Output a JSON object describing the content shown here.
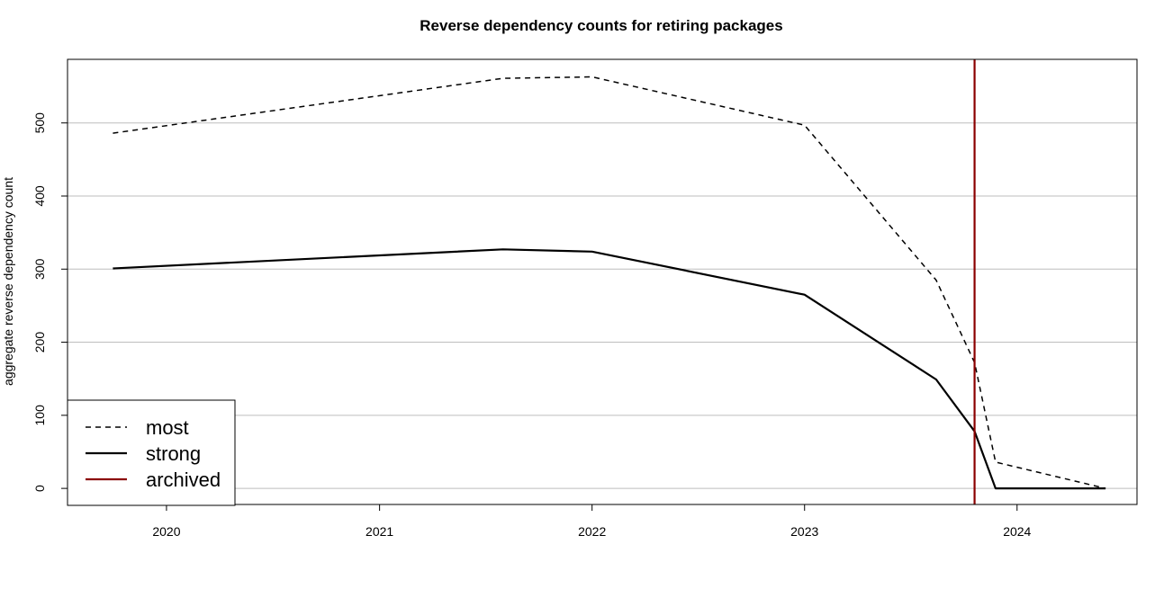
{
  "chart_data": {
    "type": "line",
    "title": "Reverse dependency counts for retiring packages",
    "xlabel": "",
    "ylabel": "aggregate reverse dependency count",
    "x_ticks": [
      "2020",
      "2021",
      "2022",
      "2023",
      "2024"
    ],
    "y_ticks": [
      "0",
      "100",
      "200",
      "300",
      "400",
      "500"
    ],
    "xlim": [
      "2019-07-15",
      "2024-07-25"
    ],
    "ylim": [
      -22,
      587
    ],
    "grid": "horizontal",
    "legend_position": "bottom-left",
    "series": [
      {
        "name": "most",
        "line_style": "dashed",
        "color": "#000000",
        "points": [
          [
            "2019-10-01",
            486
          ],
          [
            "2021-08-01",
            561
          ],
          [
            "2022-01-01",
            563
          ],
          [
            "2023-01-01",
            497
          ],
          [
            "2023-08-15",
            285
          ],
          [
            "2023-10-20",
            172
          ],
          [
            "2023-11-25",
            36
          ],
          [
            "2024-06-01",
            0
          ]
        ]
      },
      {
        "name": "strong",
        "line_style": "solid",
        "color": "#000000",
        "points": [
          [
            "2019-10-01",
            301
          ],
          [
            "2021-08-01",
            327
          ],
          [
            "2022-01-01",
            324
          ],
          [
            "2023-01-01",
            265
          ],
          [
            "2023-08-15",
            149
          ],
          [
            "2023-10-20",
            78
          ],
          [
            "2023-11-25",
            0
          ],
          [
            "2024-06-01",
            0
          ]
        ]
      }
    ],
    "vertical_lines": [
      {
        "name": "archived",
        "x": "2023-10-20",
        "color": "#8b0000"
      }
    ],
    "legend": [
      {
        "label": "most",
        "style": "dashed",
        "color": "#000000"
      },
      {
        "label": "strong",
        "style": "solid",
        "color": "#000000"
      },
      {
        "label": "archived",
        "style": "solid",
        "color": "#8b0000"
      }
    ]
  }
}
